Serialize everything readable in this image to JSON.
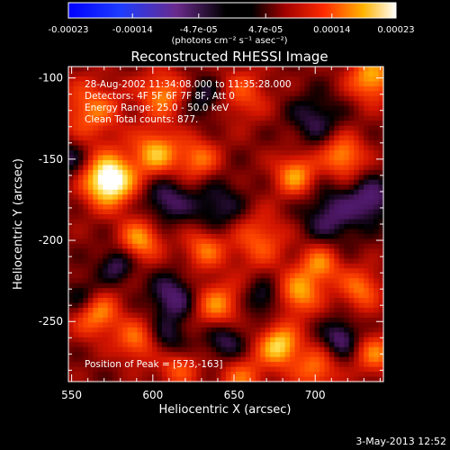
{
  "chart_data": {
    "type": "heatmap",
    "title": "Reconstructed RHESSI Image",
    "xlabel": "Heliocentric X (arcsec)",
    "ylabel": "Heliocentric Y (arcsec)",
    "xlim": [
      548,
      742
    ],
    "ylim": [
      -287,
      -93
    ],
    "x_ticks": [
      550,
      600,
      650,
      700
    ],
    "y_ticks": [
      -100,
      -150,
      -200,
      -250
    ],
    "grid": false,
    "colorbar": {
      "range": [
        -0.00023,
        0.00023
      ],
      "tick_values": [
        -0.00023,
        -0.00014,
        -4.7e-05,
        4.7e-05,
        0.00014,
        0.00023
      ],
      "tick_labels": [
        "-0.00023",
        "-0.00014",
        "-4.7e-05",
        "4.7e-05",
        "0.00014",
        "0.00023"
      ],
      "units": "(photons cm⁻² s⁻¹ asec⁻²)",
      "placement": "top"
    },
    "annotations": [
      "28-Aug-2002 11:34:08.000 to 11:35:28.000",
      "Detectors: 4F 5F 6F 7F 8F, Att 0",
      "Energy Range: 25.0 - 50.0 keV",
      "Clean     Total counts: 877."
    ],
    "peak_label": "Position of Peak = [573,-163]",
    "peak": {
      "x": 573,
      "y": -163,
      "value": 0.00023
    },
    "sources": [
      {
        "x": 573,
        "y": -163,
        "amp": 1.0,
        "w": 11
      },
      {
        "x": 562,
        "y": -120,
        "amp": 0.45,
        "w": 13
      },
      {
        "x": 606,
        "y": -110,
        "amp": 0.5,
        "w": 10
      },
      {
        "x": 602,
        "y": -146,
        "amp": 0.6,
        "w": 10
      },
      {
        "x": 628,
        "y": -150,
        "amp": 0.45,
        "w": 9
      },
      {
        "x": 655,
        "y": -110,
        "amp": 0.35,
        "w": 11
      },
      {
        "x": 688,
        "y": -160,
        "amp": 0.55,
        "w": 9
      },
      {
        "x": 735,
        "y": -100,
        "amp": 0.6,
        "w": 10
      },
      {
        "x": 717,
        "y": -148,
        "amp": 0.55,
        "w": 9
      },
      {
        "x": 592,
        "y": -200,
        "amp": 0.55,
        "w": 9
      },
      {
        "x": 632,
        "y": -205,
        "amp": 0.45,
        "w": 9
      },
      {
        "x": 665,
        "y": -200,
        "amp": 0.4,
        "w": 12
      },
      {
        "x": 703,
        "y": -215,
        "amp": 0.5,
        "w": 9
      },
      {
        "x": 728,
        "y": -230,
        "amp": 0.45,
        "w": 9
      },
      {
        "x": 565,
        "y": -245,
        "amp": 0.55,
        "w": 10
      },
      {
        "x": 590,
        "y": -262,
        "amp": 0.45,
        "w": 9
      },
      {
        "x": 640,
        "y": -240,
        "amp": 0.5,
        "w": 10
      },
      {
        "x": 678,
        "y": -265,
        "amp": 0.7,
        "w": 9
      },
      {
        "x": 690,
        "y": -233,
        "amp": 0.55,
        "w": 9
      },
      {
        "x": 700,
        "y": -280,
        "amp": 0.45,
        "w": 9
      },
      {
        "x": 737,
        "y": -270,
        "amp": 0.45,
        "w": 9
      },
      {
        "x": 655,
        "y": -285,
        "amp": 0.4,
        "w": 10
      },
      {
        "x": 615,
        "y": -278,
        "amp": 0.4,
        "w": 9
      },
      {
        "x": 578,
        "y": -215,
        "amp": -0.35,
        "w": 8
      },
      {
        "x": 548,
        "y": -150,
        "amp": -0.3,
        "w": 9
      },
      {
        "x": 608,
        "y": -175,
        "amp": -0.35,
        "w": 10
      },
      {
        "x": 640,
        "y": -180,
        "amp": -0.3,
        "w": 12
      },
      {
        "x": 710,
        "y": -185,
        "amp": -0.35,
        "w": 13
      },
      {
        "x": 700,
        "y": -125,
        "amp": -0.3,
        "w": 11
      },
      {
        "x": 735,
        "y": -175,
        "amp": -0.4,
        "w": 9
      },
      {
        "x": 632,
        "y": -112,
        "amp": -0.3,
        "w": 9
      },
      {
        "x": 557,
        "y": -235,
        "amp": -0.35,
        "w": 8
      },
      {
        "x": 612,
        "y": -235,
        "amp": -0.4,
        "w": 10
      },
      {
        "x": 668,
        "y": -236,
        "amp": -0.3,
        "w": 8
      },
      {
        "x": 610,
        "y": -262,
        "amp": -0.3,
        "w": 9
      },
      {
        "x": 716,
        "y": -260,
        "amp": -0.4,
        "w": 8
      },
      {
        "x": 645,
        "y": -262,
        "amp": -0.35,
        "w": 9
      }
    ]
  },
  "footer": {
    "date": "3-May-2013 12:52"
  }
}
